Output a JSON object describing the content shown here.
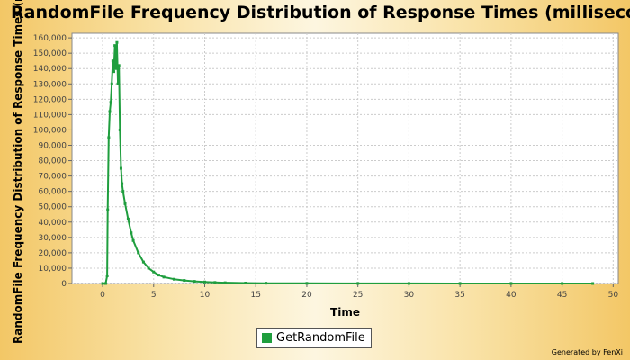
{
  "chart_data": {
    "type": "line",
    "title": "RandomFile Frequency Distribution of Response Times (milliseconds)",
    "ylabel": "RandomFile Frequency Distribution of Response Times (milliseconds)",
    "xlabel": "Time",
    "xlim": [
      -3,
      50.5
    ],
    "ylim": [
      0,
      163000
    ],
    "x_ticks": [
      0,
      5,
      10,
      15,
      20,
      25,
      30,
      35,
      40,
      45,
      50
    ],
    "y_ticks": [
      0,
      10000,
      20000,
      30000,
      40000,
      50000,
      60000,
      70000,
      80000,
      90000,
      100000,
      110000,
      120000,
      130000,
      140000,
      150000,
      160000
    ],
    "x_tick_labels": [
      "0",
      "5",
      "10",
      "15",
      "20",
      "25",
      "30",
      "35",
      "40",
      "45",
      "50"
    ],
    "y_tick_labels": [
      "0",
      "10,000",
      "20,000",
      "30,000",
      "40,000",
      "50,000",
      "60,000",
      "70,000",
      "80,000",
      "90,000",
      "100,000",
      "110,000",
      "120,000",
      "130,000",
      "140,000",
      "150,000",
      "160,000"
    ],
    "grid": true,
    "legend_position": "bottom-center",
    "series": [
      {
        "name": "GetRandomFile",
        "color": "#1f9e3e",
        "x": [
          0,
          0.3,
          0.45,
          0.5,
          0.6,
          0.7,
          0.8,
          0.9,
          1.0,
          1.1,
          1.2,
          1.3,
          1.4,
          1.5,
          1.6,
          1.7,
          1.8,
          1.9,
          2.0,
          2.2,
          2.5,
          2.8,
          3.0,
          3.5,
          4.0,
          4.5,
          5.0,
          5.5,
          6.0,
          7.0,
          8.0,
          9.0,
          10.0,
          11.0,
          12.0,
          14.0,
          16.0,
          20.0,
          25.0,
          30.0,
          35.0,
          40.0,
          45.0,
          48.0
        ],
        "y": [
          0,
          0,
          5000,
          48000,
          95000,
          112000,
          118000,
          130000,
          145000,
          138000,
          155000,
          140000,
          157000,
          130000,
          142000,
          100000,
          75000,
          65000,
          60000,
          52000,
          42000,
          33000,
          28000,
          20000,
          14000,
          10000,
          7500,
          5500,
          4200,
          2800,
          2000,
          1400,
          1000,
          700,
          500,
          300,
          200,
          100,
          50,
          30,
          20,
          10,
          10,
          0
        ]
      }
    ]
  },
  "legend": {
    "label": "GetRandomFile"
  },
  "footer": {
    "generated_by": "Generated by FenXi"
  }
}
